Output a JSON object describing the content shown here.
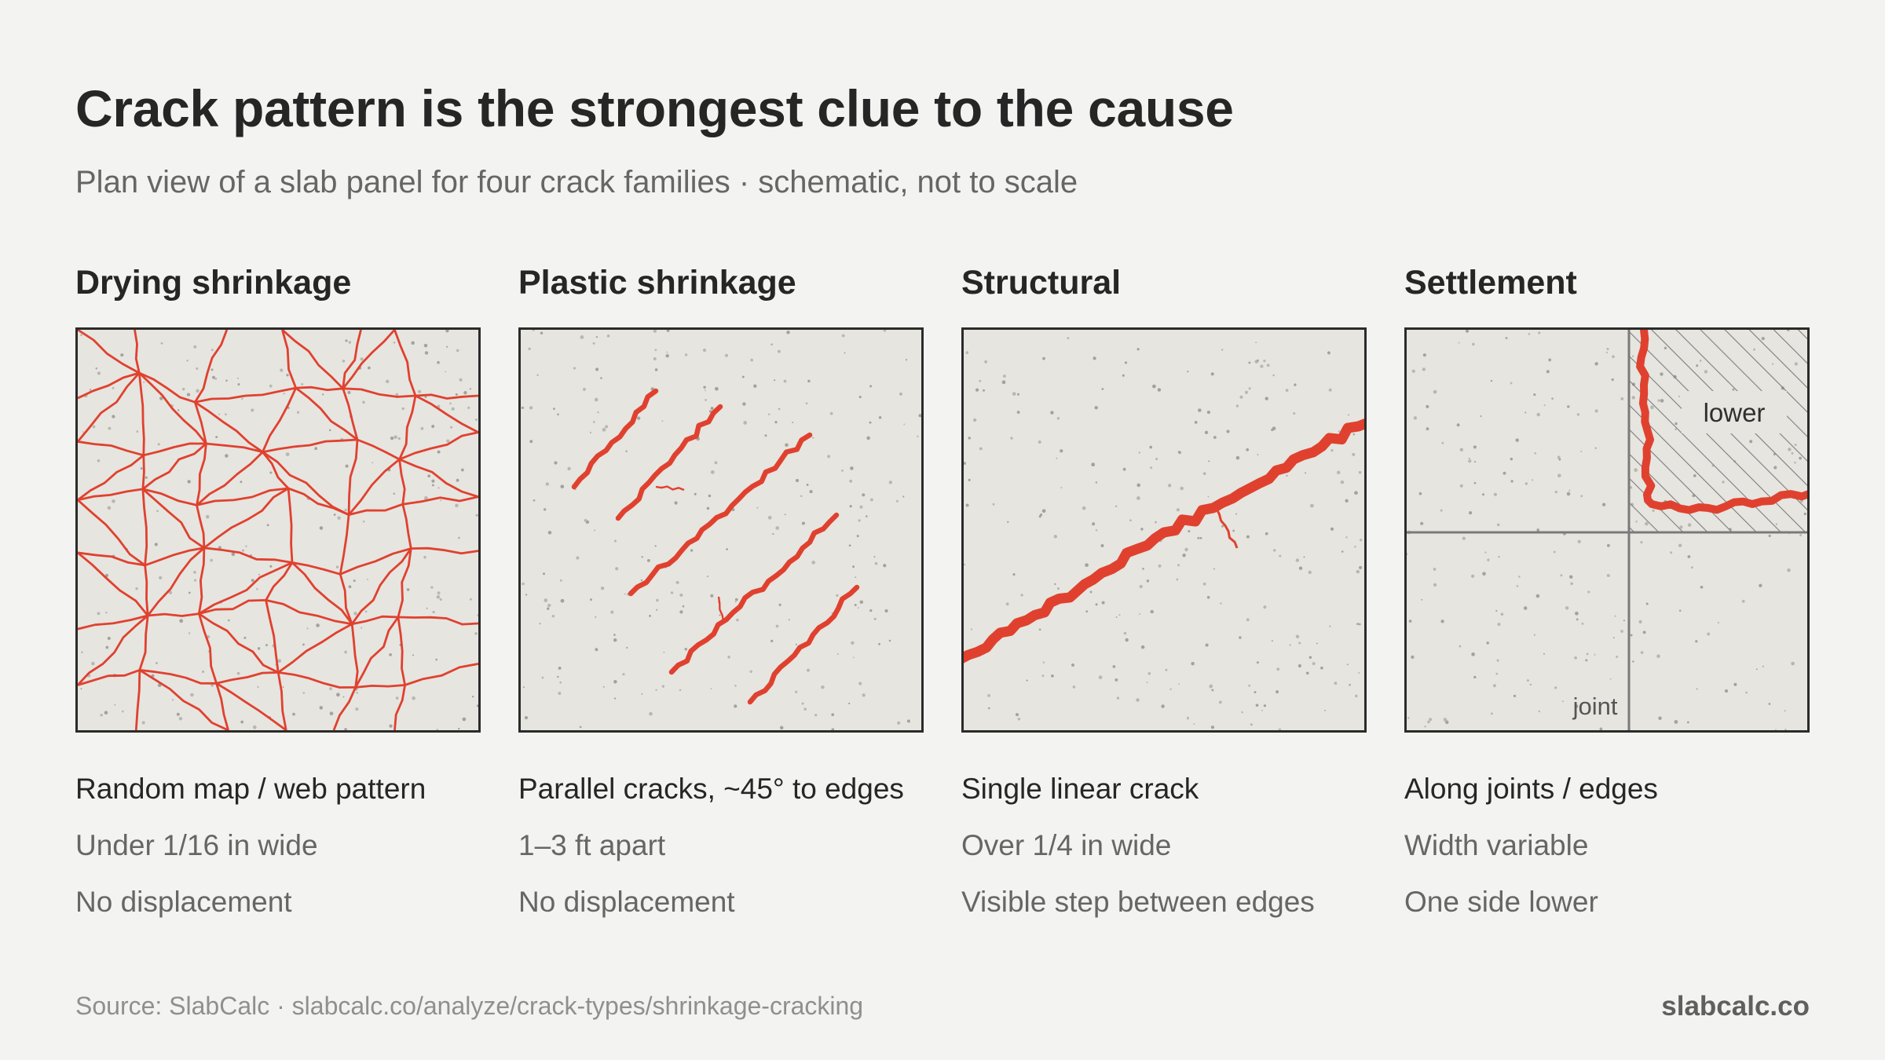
{
  "title": "Crack pattern is the strongest clue to the cause",
  "subtitle": "Plan view of a slab panel for four crack families · schematic, not to scale",
  "colors": {
    "background": "#f3f3f1",
    "slab": "#e6e5e0",
    "crack": "#e0412f",
    "border": "#2b2b2b",
    "joint": "#7a7a7a"
  },
  "columns": [
    {
      "title": "Drying shrinkage",
      "pattern": "random-map",
      "lines": [
        "Random map / web pattern",
        "Under 1/16 in wide",
        "No displacement"
      ]
    },
    {
      "title": "Plastic shrinkage",
      "pattern": "parallel-diagonal",
      "lines": [
        "Parallel cracks, ~45° to edges",
        "1–3 ft apart",
        "No displacement"
      ]
    },
    {
      "title": "Structural",
      "pattern": "single-linear",
      "lines": [
        "Single linear crack",
        "Over 1/4 in wide",
        "Visible step between edges"
      ]
    },
    {
      "title": "Settlement",
      "pattern": "along-joints",
      "labels": {
        "lower": "lower",
        "joint": "joint"
      },
      "lines": [
        "Along joints / edges",
        "Width variable",
        "One side lower"
      ]
    }
  ],
  "footer": {
    "source": "Source: SlabCalc · slabcalc.co/analyze/crack-types/shrinkage-cracking",
    "brand": "slabcalc.co"
  }
}
